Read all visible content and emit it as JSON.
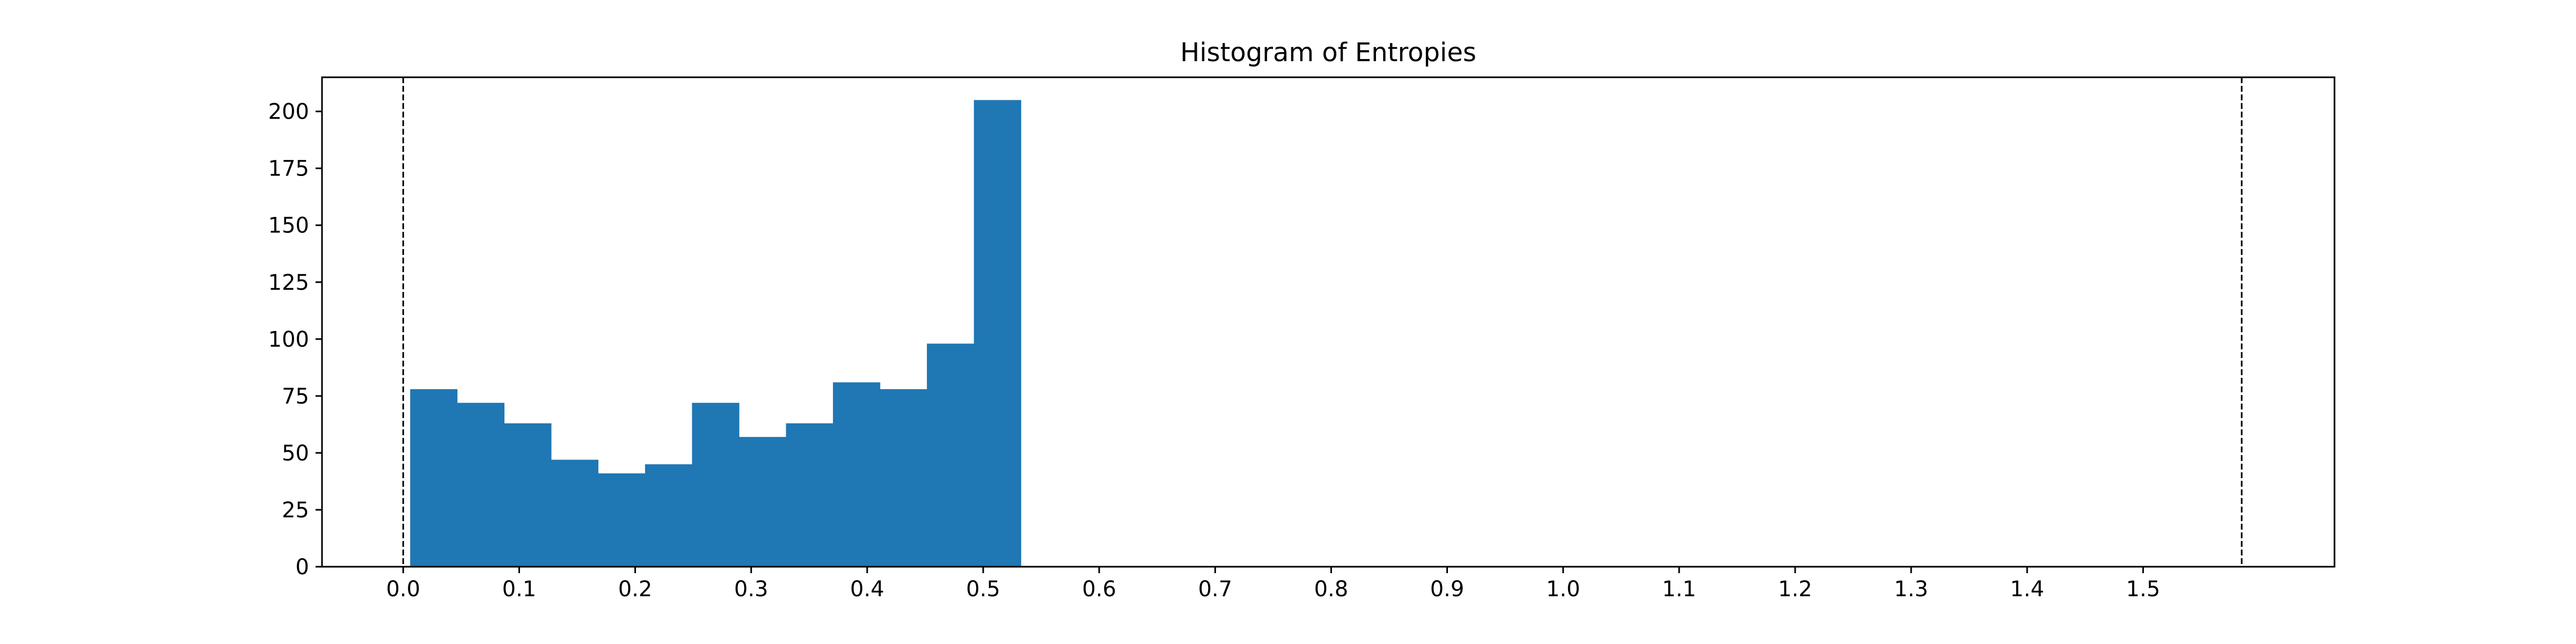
{
  "chart_data": {
    "type": "bar",
    "title": "Histogram of Entropies",
    "xlabel": "",
    "ylabel": "",
    "xlim": [
      -0.07,
      1.665
    ],
    "ylim": [
      0,
      215
    ],
    "x_ticks": [
      "0.0",
      "0.1",
      "0.2",
      "0.3",
      "0.4",
      "0.5",
      "0.6",
      "0.7",
      "0.8",
      "0.9",
      "1.0",
      "1.1",
      "1.2",
      "1.3",
      "1.4",
      "1.5"
    ],
    "y_ticks": [
      "0",
      "25",
      "50",
      "75",
      "100",
      "125",
      "150",
      "175",
      "200"
    ],
    "bin_edges": [
      0.006,
      0.0465,
      0.087,
      0.1275,
      0.168,
      0.2085,
      0.249,
      0.2895,
      0.33,
      0.3705,
      0.411,
      0.4515,
      0.492,
      0.5325
    ],
    "counts": [
      78,
      72,
      63,
      47,
      41,
      45,
      72,
      57,
      63,
      81,
      78,
      98,
      205
    ],
    "reference_lines": [
      0.0,
      1.585
    ],
    "bar_color": "#1f77b4",
    "reference_line_style": "dashed",
    "grid": false,
    "legend": "none"
  }
}
